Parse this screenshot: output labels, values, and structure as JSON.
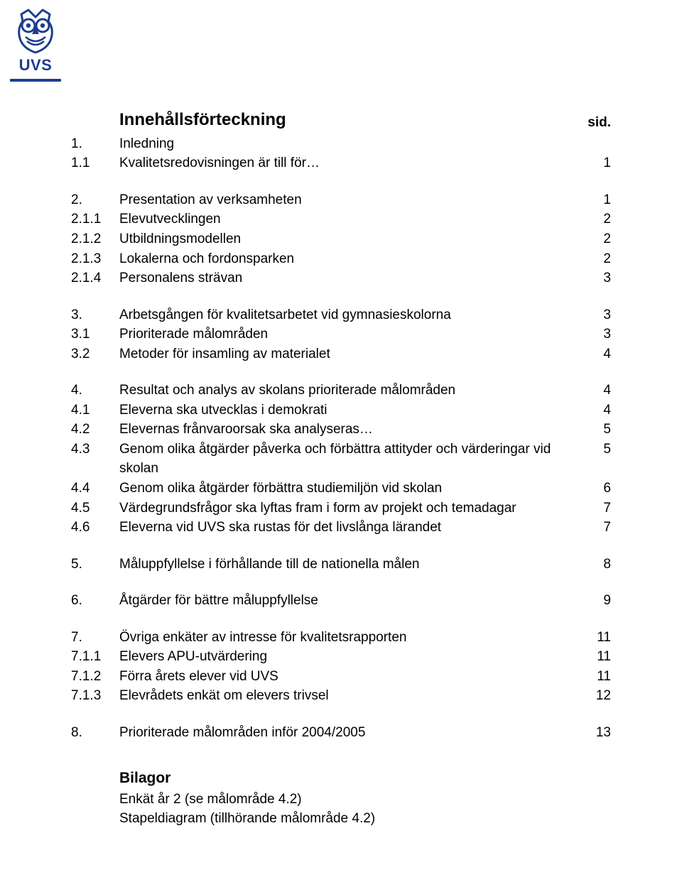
{
  "logo": {
    "label": "UVS",
    "outline_color": "#1d3d8f",
    "fill_color": "#ffffff"
  },
  "title": "Innehållsförteckning",
  "page_label": "sid.",
  "rows": [
    {
      "n": "1.",
      "t": "Inledning",
      "p": ""
    },
    {
      "n": "1.1",
      "t": "Kvalitetsredovisningen är till för…",
      "p": "1"
    },
    {
      "n": "2.",
      "t": "Presentation av verksamheten",
      "p": "1"
    },
    {
      "n": "2.1.1",
      "t": "Elevutvecklingen",
      "p": "2"
    },
    {
      "n": "2.1.2",
      "t": "Utbildningsmodellen",
      "p": "2"
    },
    {
      "n": "2.1.3",
      "t": "Lokalerna och fordonsparken",
      "p": "2"
    },
    {
      "n": "2.1.4",
      "t": "Personalens strävan",
      "p": "3"
    },
    {
      "n": "3.",
      "t": "Arbetsgången för kvalitetsarbetet vid gymnasieskolorna",
      "p": "3"
    },
    {
      "n": "3.1",
      "t": "Prioriterade målområden",
      "p": "3"
    },
    {
      "n": "3.2",
      "t": "Metoder för insamling av materialet",
      "p": "4"
    },
    {
      "n": "4.",
      "t": "Resultat och analys av skolans prioriterade målområden",
      "p": "4"
    },
    {
      "n": "4.1",
      "t": "Eleverna ska utvecklas i demokrati",
      "p": "4"
    },
    {
      "n": "4.2",
      "t": "Elevernas frånvaroorsak ska analyseras…",
      "p": "5"
    },
    {
      "n": "4.3",
      "t": "Genom olika åtgärder påverka och förbättra attityder och värderingar vid skolan",
      "p": "5"
    },
    {
      "n": "4.4",
      "t": "Genom olika åtgärder förbättra studiemiljön vid skolan",
      "p": "6"
    },
    {
      "n": "4.5",
      "t": "Värdegrundsfrågor ska lyftas fram i form av projekt och temadagar",
      "p": "7"
    },
    {
      "n": "4.6",
      "t": "Eleverna vid UVS ska rustas för det livslånga lärandet",
      "p": "7"
    },
    {
      "n": "5.",
      "t": "Måluppfyllelse i förhållande till de nationella målen",
      "p": "8"
    },
    {
      "n": "6.",
      "t": "Åtgärder för bättre måluppfyllelse",
      "p": "9"
    },
    {
      "n": "7.",
      "t": "Övriga enkäter av intresse för kvalitetsrapporten",
      "p": "11"
    },
    {
      "n": "7.1.1",
      "t": "Elevers APU-utvärdering",
      "p": "11"
    },
    {
      "n": "7.1.2",
      "t": "Förra årets elever vid UVS",
      "p": "11"
    },
    {
      "n": "7.1.3",
      "t": "Elevrådets enkät om elevers trivsel",
      "p": "12"
    },
    {
      "n": "8.",
      "t": "Prioriterade målområden inför 2004/2005",
      "p": "13"
    }
  ],
  "spacer_after": [
    "1.1",
    "2.1.4",
    "3.2",
    "4.6",
    "5.",
    "6.",
    "7.1.3"
  ],
  "bilagor": {
    "heading": "Bilagor",
    "lines": [
      "Enkät år 2 (se målområde 4.2)",
      "Stapeldiagram (tillhörande målområde 4.2)"
    ]
  },
  "colors": {
    "text": "#000000",
    "background": "#ffffff"
  },
  "fonts": {
    "body_size_pt": 14,
    "title_size_pt": 18,
    "family": "Arial"
  }
}
